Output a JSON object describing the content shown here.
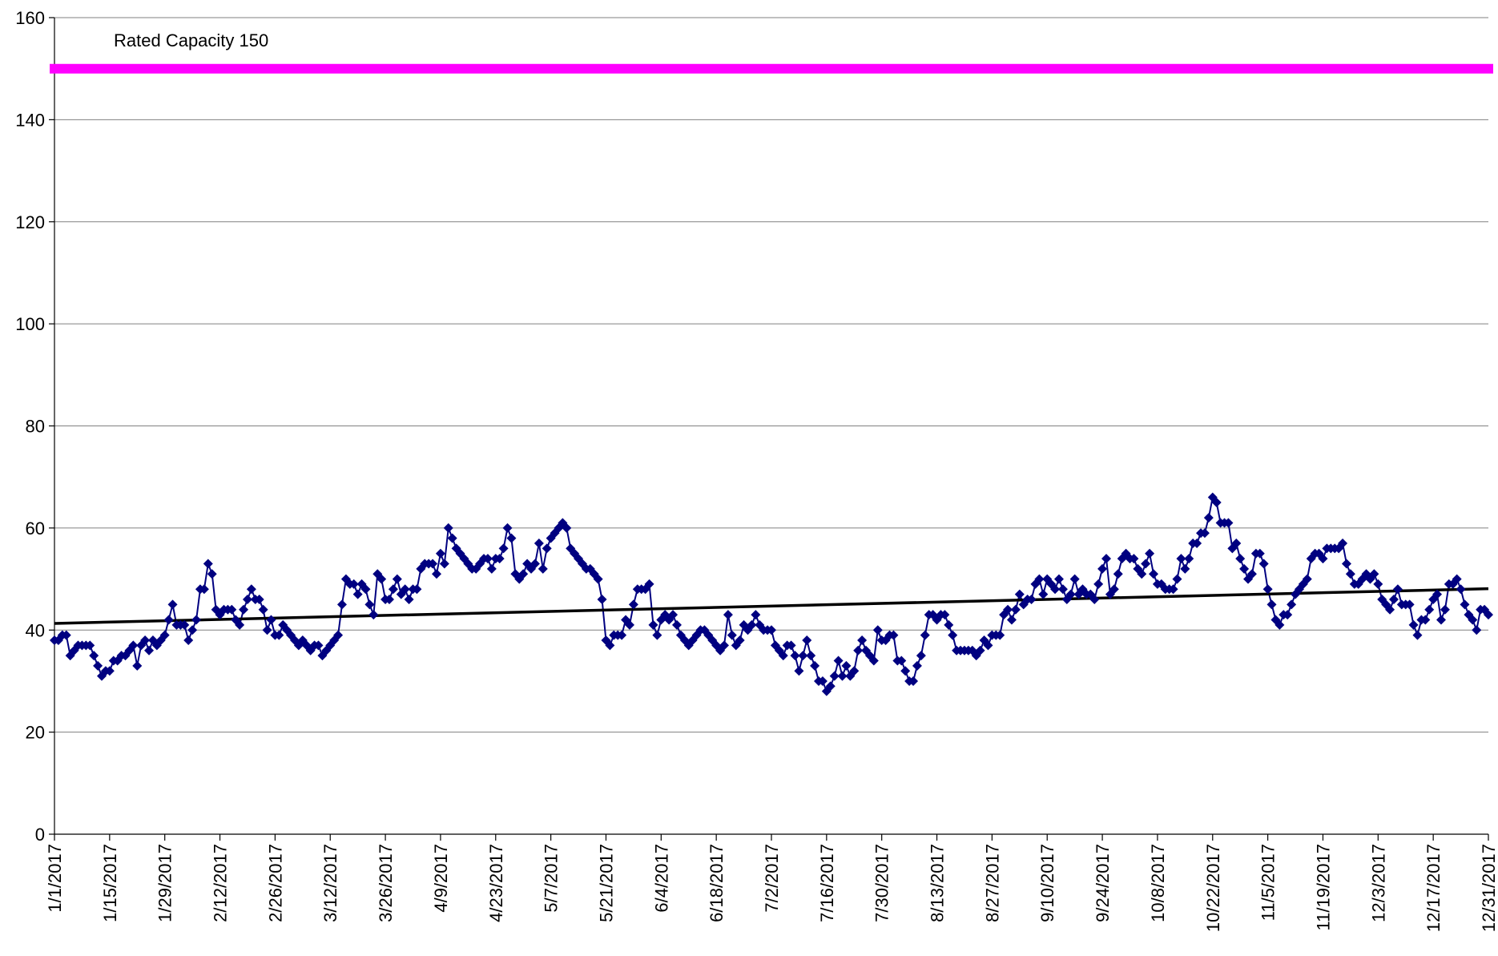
{
  "chart_data": {
    "type": "line",
    "categories": [
      "1/1/2017",
      null,
      null,
      null,
      null,
      null,
      null,
      null,
      null,
      null,
      null,
      null,
      null,
      null,
      "1/15/2017",
      null,
      null,
      null,
      null,
      null,
      null,
      null,
      null,
      null,
      null,
      null,
      null,
      null,
      "1/29/2017",
      null,
      null,
      null,
      null,
      null,
      null,
      null,
      null,
      null,
      null,
      null,
      null,
      null,
      "2/12/2017",
      null,
      null,
      null,
      null,
      null,
      null,
      null,
      null,
      null,
      null,
      null,
      null,
      null,
      "2/26/2017",
      null,
      null,
      null,
      null,
      null,
      null,
      null,
      null,
      null,
      null,
      null,
      null,
      null,
      "3/12/2017",
      null,
      null,
      null,
      null,
      null,
      null,
      null,
      null,
      null,
      null,
      null,
      null,
      null,
      "3/26/2017",
      null,
      null,
      null,
      null,
      null,
      null,
      null,
      null,
      null,
      null,
      null,
      null,
      null,
      "4/9/2017",
      null,
      null,
      null,
      null,
      null,
      null,
      null,
      null,
      null,
      null,
      null,
      null,
      null,
      "4/23/2017",
      null,
      null,
      null,
      null,
      null,
      null,
      null,
      null,
      null,
      null,
      null,
      null,
      null,
      "5/7/2017",
      null,
      null,
      null,
      null,
      null,
      null,
      null,
      null,
      null,
      null,
      null,
      null,
      null,
      "5/21/2017",
      null,
      null,
      null,
      null,
      null,
      null,
      null,
      null,
      null,
      null,
      null,
      null,
      null,
      "6/4/2017",
      null,
      null,
      null,
      null,
      null,
      null,
      null,
      null,
      null,
      null,
      null,
      null,
      null,
      "6/18/2017",
      null,
      null,
      null,
      null,
      null,
      null,
      null,
      null,
      null,
      null,
      null,
      null,
      null,
      "7/2/2017",
      null,
      null,
      null,
      null,
      null,
      null,
      null,
      null,
      null,
      null,
      null,
      null,
      null,
      "7/16/2017",
      null,
      null,
      null,
      null,
      null,
      null,
      null,
      null,
      null,
      null,
      null,
      null,
      null,
      "7/30/2017",
      null,
      null,
      null,
      null,
      null,
      null,
      null,
      null,
      null,
      null,
      null,
      null,
      null,
      "8/13/2017",
      null,
      null,
      null,
      null,
      null,
      null,
      null,
      null,
      null,
      null,
      null,
      null,
      null,
      "8/27/2017",
      null,
      null,
      null,
      null,
      null,
      null,
      null,
      null,
      null,
      null,
      null,
      null,
      null,
      "9/10/2017",
      null,
      null,
      null,
      null,
      null,
      null,
      null,
      null,
      null,
      null,
      null,
      null,
      null,
      "9/24/2017",
      null,
      null,
      null,
      null,
      null,
      null,
      null,
      null,
      null,
      null,
      null,
      null,
      null,
      "10/8/2017",
      null,
      null,
      null,
      null,
      null,
      null,
      null,
      null,
      null,
      null,
      null,
      null,
      null,
      "10/22/2017",
      null,
      null,
      null,
      null,
      null,
      null,
      null,
      null,
      null,
      null,
      null,
      null,
      null,
      "11/5/2017",
      null,
      null,
      null,
      null,
      null,
      null,
      null,
      null,
      null,
      null,
      null,
      null,
      null,
      "11/19/2017",
      null,
      null,
      null,
      null,
      null,
      null,
      null,
      null,
      null,
      null,
      null,
      null,
      null,
      "12/3/2017",
      null,
      null,
      null,
      null,
      null,
      null,
      null,
      null,
      null,
      null,
      null,
      null,
      null,
      "12/17/2017",
      null,
      null,
      null,
      null,
      null,
      null,
      null,
      null,
      null,
      null,
      null,
      null,
      null,
      "12/31/2017"
    ],
    "values": [
      38,
      38,
      39,
      39,
      35,
      36,
      37,
      37,
      37,
      37,
      35,
      33,
      31,
      32,
      32,
      34,
      34,
      35,
      35,
      36,
      37,
      33,
      37,
      38,
      36,
      38,
      37,
      38,
      39,
      42,
      45,
      41,
      41,
      41,
      38,
      40,
      42,
      48,
      48,
      53,
      51,
      44,
      43,
      44,
      44,
      44,
      42,
      41,
      44,
      46,
      48,
      46,
      46,
      44,
      40,
      42,
      39,
      39,
      41,
      40,
      39,
      38,
      37,
      38,
      37,
      36,
      37,
      37,
      35,
      36,
      37,
      38,
      39,
      45,
      50,
      49,
      49,
      47,
      49,
      48,
      45,
      43,
      51,
      50,
      46,
      46,
      48,
      50,
      47,
      48,
      46,
      48,
      48,
      52,
      53,
      53,
      53,
      51,
      55,
      53,
      60,
      58,
      56,
      55,
      54,
      53,
      52,
      52,
      53,
      54,
      54,
      52,
      54,
      54,
      56,
      60,
      58,
      51,
      50,
      51,
      53,
      52,
      53,
      57,
      52,
      56,
      58,
      59,
      60,
      61,
      60,
      56,
      55,
      54,
      53,
      52,
      52,
      51,
      50,
      46,
      38,
      37,
      39,
      39,
      39,
      42,
      41,
      45,
      48,
      48,
      48,
      49,
      41,
      39,
      42,
      43,
      42,
      43,
      41,
      39,
      38,
      37,
      38,
      39,
      40,
      40,
      39,
      38,
      37,
      36,
      37,
      43,
      39,
      37,
      38,
      41,
      40,
      41,
      43,
      41,
      40,
      40,
      40,
      37,
      36,
      35,
      37,
      37,
      35,
      32,
      35,
      38,
      35,
      33,
      30,
      30,
      28,
      29,
      31,
      34,
      31,
      33,
      31,
      32,
      36,
      38,
      36,
      35,
      34,
      40,
      38,
      38,
      39,
      39,
      34,
      34,
      32,
      30,
      30,
      33,
      35,
      39,
      43,
      43,
      42,
      43,
      43,
      41,
      39,
      36,
      36,
      36,
      36,
      36,
      35,
      36,
      38,
      37,
      39,
      39,
      39,
      43,
      44,
      42,
      44,
      47,
      45,
      46,
      46,
      49,
      50,
      47,
      50,
      49,
      48,
      50,
      48,
      46,
      47,
      50,
      47,
      48,
      47,
      47,
      46,
      49,
      52,
      54,
      47,
      48,
      51,
      54,
      55,
      54,
      54,
      52,
      51,
      53,
      55,
      51,
      49,
      49,
      48,
      48,
      48,
      50,
      54,
      52,
      54,
      57,
      57,
      59,
      59,
      62,
      66,
      65,
      61,
      61,
      61,
      56,
      57,
      54,
      52,
      50,
      51,
      55,
      55,
      53,
      48,
      45,
      42,
      41,
      43,
      43,
      45,
      47,
      48,
      49,
      50,
      54,
      55,
      55,
      54,
      56,
      56,
      56,
      56,
      57,
      53,
      51,
      49,
      49,
      50,
      51,
      50,
      51,
      49,
      46,
      45,
      44,
      46,
      48,
      45,
      45,
      45,
      41,
      39,
      42,
      42,
      44,
      46,
      47,
      42,
      44,
      49,
      49,
      50,
      48,
      45,
      43,
      42,
      40,
      44,
      44,
      43
    ],
    "color": "#000080",
    "marker": "diamond",
    "trendline": {
      "values": [
        41.3,
        48.1
      ],
      "color": "#000000"
    },
    "reference_line": {
      "value": 150,
      "label": "Rated Capacity 150",
      "color": "#ff00ff"
    },
    "ylim": [
      0,
      160
    ],
    "yticks": [
      0,
      20,
      40,
      60,
      80,
      100,
      120,
      140,
      160
    ],
    "grid": true
  }
}
